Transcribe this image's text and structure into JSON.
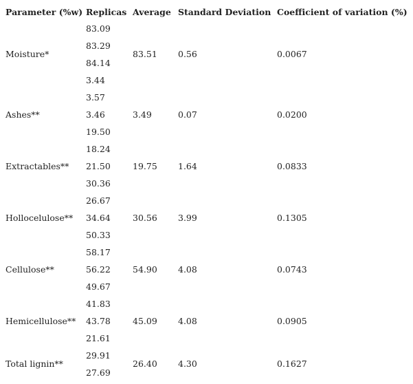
{
  "table": {
    "header": [
      "Parameter (%w)",
      "Replicas",
      "Average",
      "Standard Deviation",
      "Coefficient of variation (%)"
    ],
    "rows": [
      {
        "parameter": "Moisture*",
        "replicas": [
          "83.09",
          "83.29",
          "84.14"
        ],
        "average": "83.51",
        "sd": "0.56",
        "cv": "0.0067"
      },
      {
        "parameter": "Ashes**",
        "replicas": [
          "3.44",
          "3.57",
          "3.46"
        ],
        "average": "3.49",
        "sd": "0.07",
        "cv": "0.0200"
      },
      {
        "parameter": "Extractables**",
        "replicas": [
          "19.50",
          "18.24",
          "21.50"
        ],
        "average": "19.75",
        "sd": "1.64",
        "cv": "0.0833"
      },
      {
        "parameter": "Hollocelulose**",
        "replicas": [
          "30.36",
          "26.67",
          "34.64"
        ],
        "average": "30.56",
        "sd": "3.99",
        "cv": "0.1305"
      },
      {
        "parameter": "Cellulose**",
        "replicas": [
          "50.33",
          "58.17",
          "56.22"
        ],
        "average": "54.90",
        "sd": "4.08",
        "cv": "0.0743"
      },
      {
        "parameter": "Hemicellulose**",
        "replicas": [
          "49.67",
          "41.83",
          "43.78"
        ],
        "average": "45.09",
        "sd": "4.08",
        "cv": "0.0905"
      },
      {
        "parameter": "Total lignin**",
        "replicas": [
          "21.61",
          "29.91",
          "27.69"
        ],
        "average": "26.40",
        "sd": "4.30",
        "cv": "0.1627"
      }
    ]
  }
}
